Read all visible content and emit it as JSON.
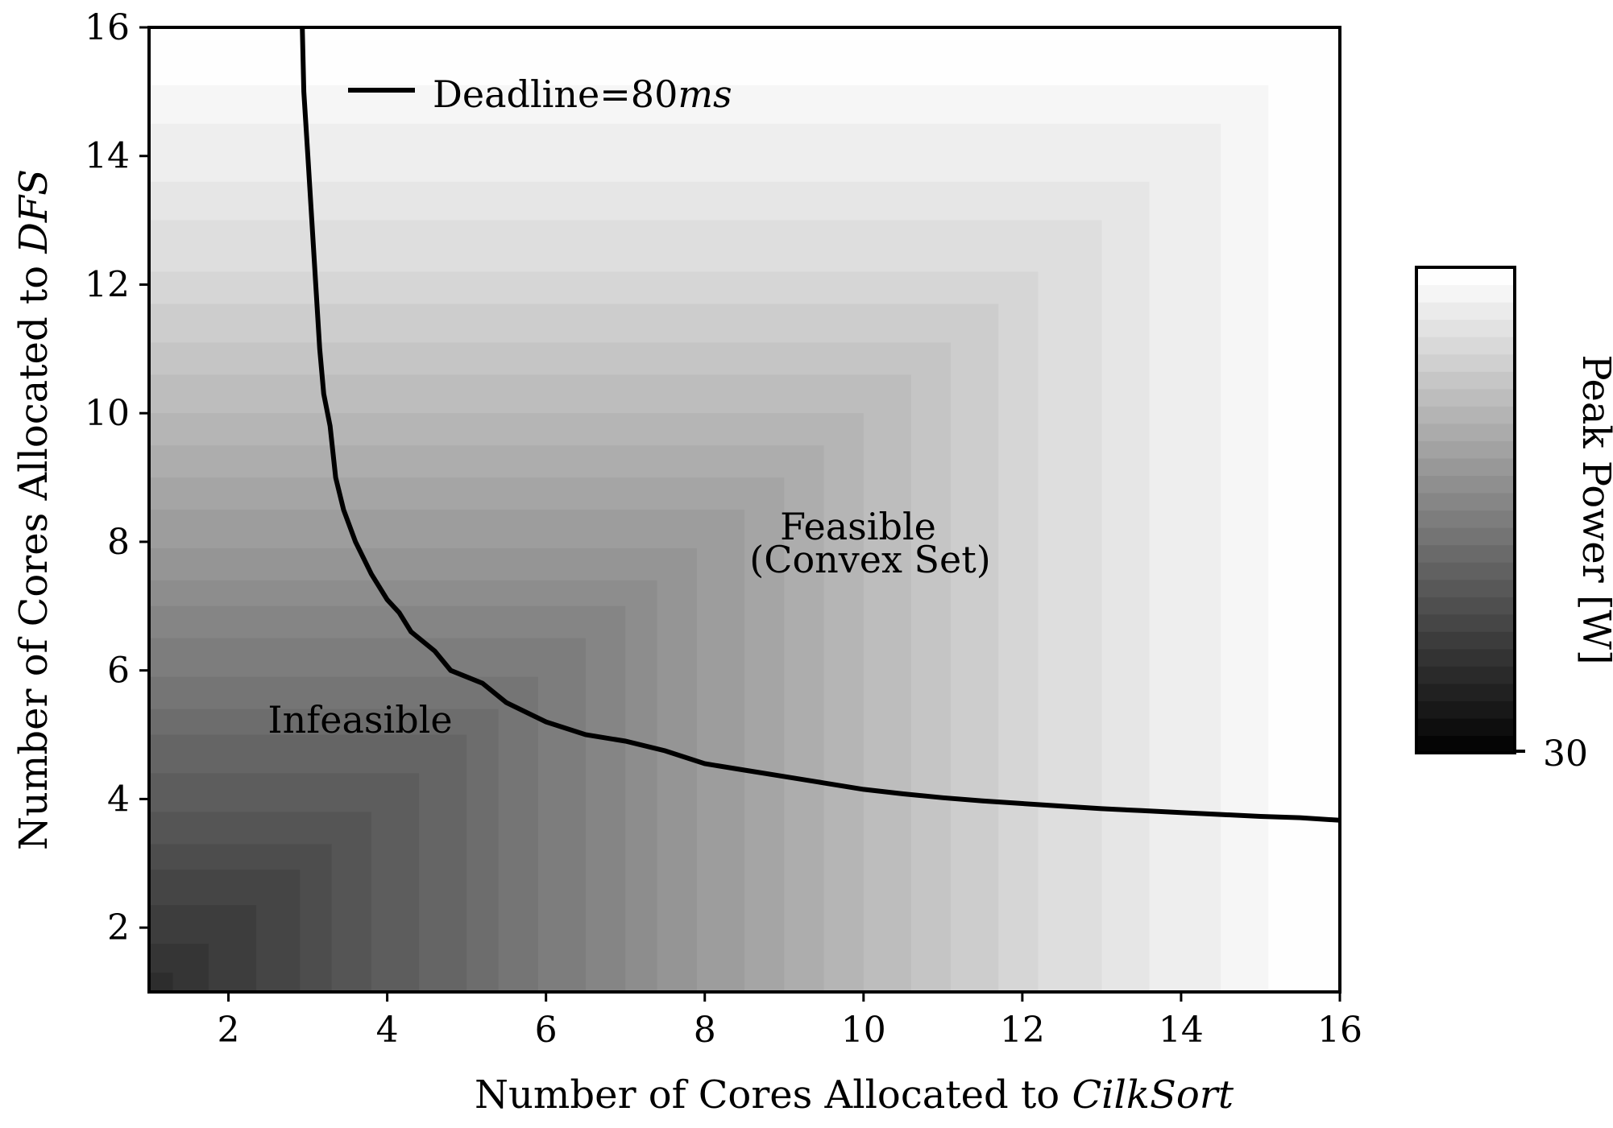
{
  "chart_data": {
    "type": "heatmap",
    "title": "",
    "xlabel_prefix": "Number of Cores Allocated to ",
    "xlabel_italic": "CilkSort",
    "ylabel_prefix": "Number of Cores Allocated to ",
    "ylabel_italic": "DFS",
    "xlim": [
      1,
      16
    ],
    "ylim": [
      1,
      16
    ],
    "x_ticks": [
      2,
      4,
      6,
      8,
      10,
      12,
      14,
      16
    ],
    "y_ticks": [
      2,
      4,
      6,
      8,
      10,
      12,
      14,
      16
    ],
    "colorbar": {
      "label": "Peak Power [W]",
      "tick_labels": [
        "30"
      ],
      "levels": 28,
      "colormap": "gray"
    },
    "deadline_curve": {
      "name": "Deadline=80ms",
      "legend_text": "Deadline=",
      "legend_value": "80",
      "legend_unit": "ms",
      "x": [
        2.93,
        2.95,
        3.0,
        3.05,
        3.1,
        3.15,
        3.2,
        3.28,
        3.35,
        3.45,
        3.6,
        3.8,
        4.0,
        4.15,
        4.3,
        4.6,
        4.8,
        5.2,
        5.5,
        6.0,
        6.5,
        7.0,
        7.5,
        8.0,
        8.5,
        9.0,
        9.5,
        10.0,
        10.5,
        11.0,
        11.5,
        12.0,
        12.5,
        13.0,
        13.5,
        14.0,
        14.5,
        15.0,
        15.5,
        16.0
      ],
      "y": [
        16.0,
        15.0,
        14.0,
        13.0,
        12.0,
        11.0,
        10.3,
        9.8,
        9.0,
        8.5,
        8.0,
        7.5,
        7.1,
        6.9,
        6.6,
        6.3,
        6.0,
        5.8,
        5.5,
        5.2,
        5.0,
        4.9,
        4.75,
        4.55,
        4.45,
        4.35,
        4.25,
        4.15,
        4.08,
        4.02,
        3.97,
        3.93,
        3.89,
        3.85,
        3.82,
        3.79,
        3.76,
        3.73,
        3.71,
        3.67
      ]
    },
    "annotations": {
      "feasible_line1": "Feasible",
      "feasible_line2": "(Convex Set)",
      "infeasible": "Infeasible"
    }
  }
}
